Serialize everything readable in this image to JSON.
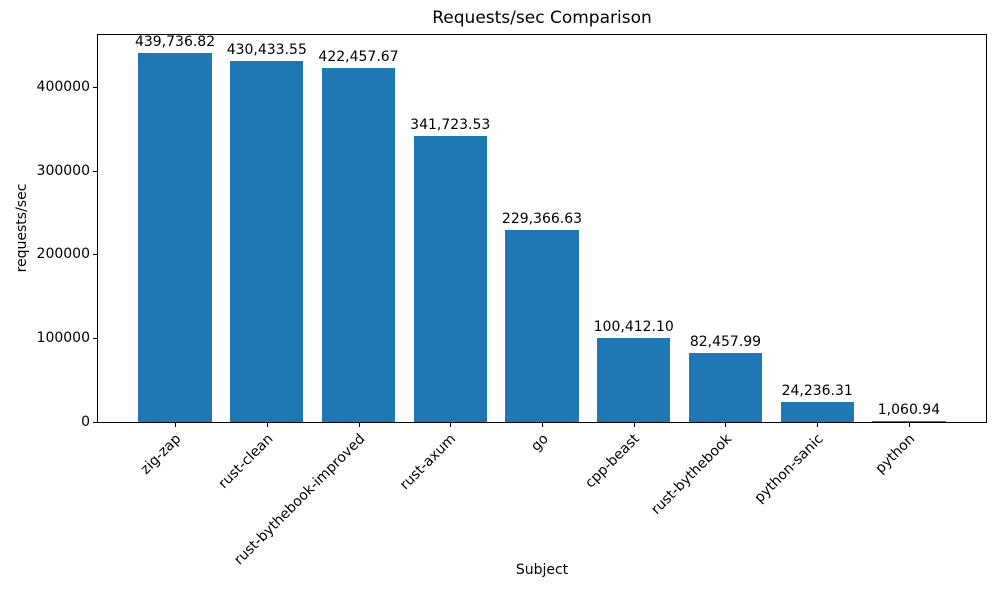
{
  "chart_data": {
    "type": "bar",
    "title": "Requests/sec Comparison",
    "xlabel": "Subject",
    "ylabel": "requests/sec",
    "categories": [
      "zig-zap",
      "rust-clean",
      "rust-bythebook-improved",
      "rust-axum",
      "go",
      "cpp-beast",
      "rust-bythebook",
      "python-sanic",
      "python"
    ],
    "values": [
      439736.82,
      430433.55,
      422457.67,
      341723.53,
      229366.63,
      100412.1,
      82457.99,
      24236.31,
      1060.94
    ],
    "value_labels": [
      "439,736.82",
      "430,433.55",
      "422,457.67",
      "341,723.53",
      "229,366.63",
      "100,412.10",
      "82,457.99",
      "24,236.31",
      "1,060.94"
    ],
    "yticks": [
      0,
      100000,
      200000,
      300000,
      400000
    ],
    "ytick_labels": [
      "0",
      "100000",
      "200000",
      "300000",
      "400000"
    ],
    "ylim": [
      0,
      461723.66
    ],
    "bar_color": "#1f77b4",
    "grid": false,
    "legend_position": "none",
    "x_tick_rotation_deg": 45
  }
}
